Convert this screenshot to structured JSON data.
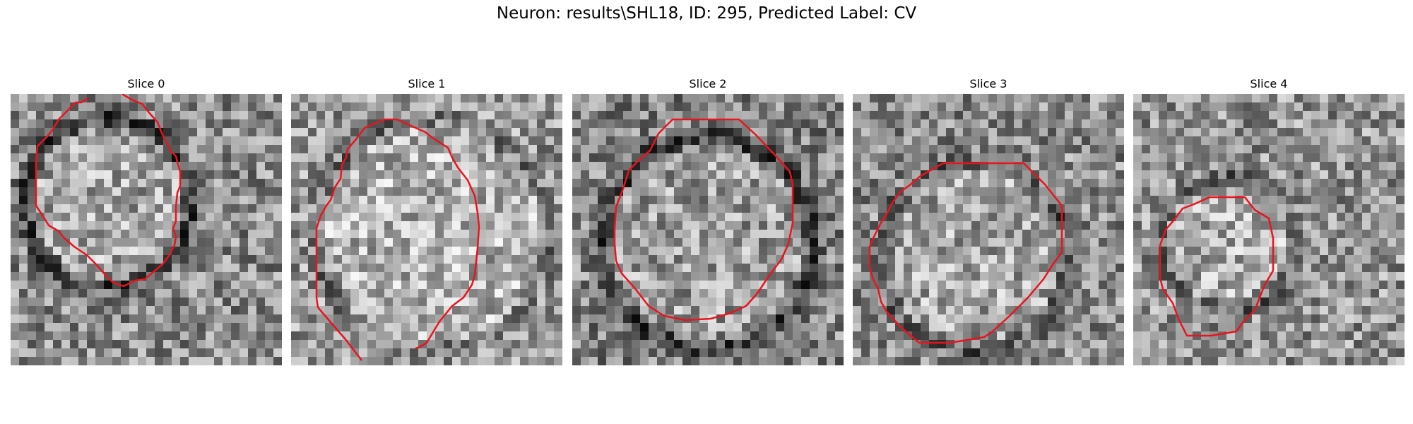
{
  "figure": {
    "title": "Neuron: results\\SHL18, ID: 295, Predicted Label: CV"
  },
  "contour_color": "#e8141e",
  "colormap": "grayscale",
  "slices": [
    {
      "title": "Slice 0"
    },
    {
      "title": "Slice 1"
    },
    {
      "title": "Slice 2"
    },
    {
      "title": "Slice 3"
    },
    {
      "title": "Slice 4"
    }
  ]
}
